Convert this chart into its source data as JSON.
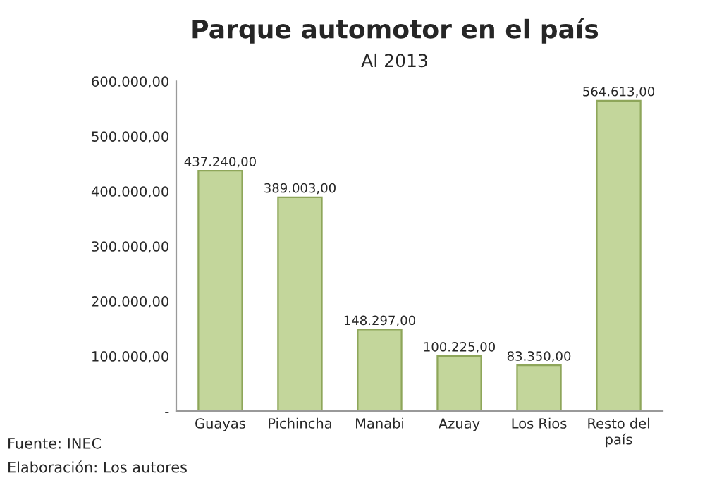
{
  "chart_data": {
    "type": "bar",
    "title": "Parque automotor en el país",
    "subtitle": "Al 2013",
    "categories": [
      "Guayas",
      "Pichincha",
      "Manabi",
      "Azuay",
      "Los Rios",
      "Resto del\npaís"
    ],
    "values": [
      437240,
      389003,
      148297,
      100225,
      83350,
      564613
    ],
    "value_labels": [
      "437.240,00",
      "389.003,00",
      "148.297,00",
      "100.225,00",
      "83.350,00",
      "564.613,00"
    ],
    "color": "#c3d69b",
    "ylim": [
      0,
      600000
    ],
    "yticks": [
      {
        "value": 0,
        "label": "-"
      },
      {
        "value": 100000,
        "label": "100.000,00"
      },
      {
        "value": 200000,
        "label": "200.000,00"
      },
      {
        "value": 300000,
        "label": "300.000,00"
      },
      {
        "value": 400000,
        "label": "400.000,00"
      },
      {
        "value": 500000,
        "label": "500.000,00"
      },
      {
        "value": 600000,
        "label": "600.000,00"
      }
    ],
    "grid": false,
    "annotations": [
      "Fuente: INEC",
      "Elaboración: Los autores"
    ]
  }
}
